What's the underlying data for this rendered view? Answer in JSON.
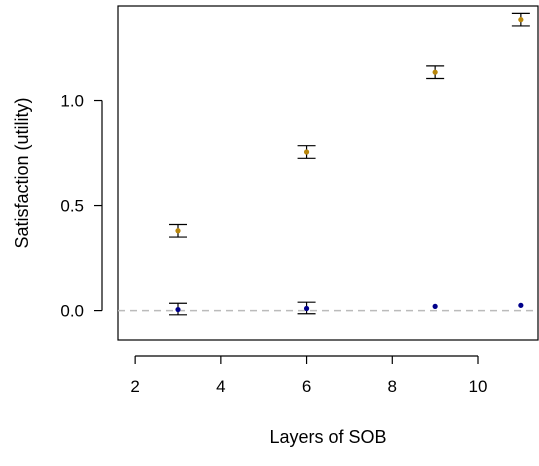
{
  "chart_data": {
    "type": "scatter",
    "xlabel": "Layers of SOB",
    "ylabel": "Satisfaction (utility)",
    "xlim": [
      1.6,
      11.4
    ],
    "ylim": [
      -0.14,
      1.45
    ],
    "xticks": [
      2,
      4,
      6,
      8,
      10
    ],
    "yticks": [
      0.0,
      0.5,
      1.0
    ],
    "ytick_labels": [
      "0.0",
      "0.5",
      "1.0"
    ],
    "reference_line": {
      "y": 0,
      "style": "dashed",
      "color": "#bbbbbb"
    },
    "grid": false,
    "series": [
      {
        "color": "#b8860b",
        "points": [
          {
            "x": 3,
            "y": 0.38,
            "lo": 0.35,
            "hi": 0.41
          },
          {
            "x": 6,
            "y": 0.755,
            "lo": 0.725,
            "hi": 0.785
          },
          {
            "x": 9,
            "y": 1.135,
            "lo": 1.105,
            "hi": 1.165
          },
          {
            "x": 11,
            "y": 1.385,
            "lo": 1.355,
            "hi": 1.415
          }
        ]
      },
      {
        "color": "#00008b",
        "points": [
          {
            "x": 3,
            "y": 0.005,
            "lo": -0.02,
            "hi": 0.035
          },
          {
            "x": 6,
            "y": 0.01,
            "lo": -0.015,
            "hi": 0.04
          },
          {
            "x": 9,
            "y": 0.02,
            "lo": null,
            "hi": null
          },
          {
            "x": 11,
            "y": 0.025,
            "lo": null,
            "hi": null
          }
        ]
      }
    ]
  }
}
